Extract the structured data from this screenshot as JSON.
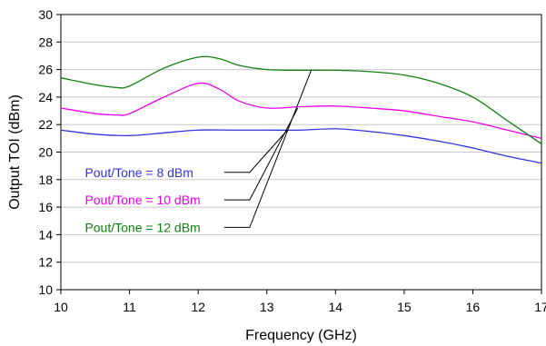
{
  "chart_data": {
    "type": "line",
    "title": "",
    "xlabel": "Frequency (GHz)",
    "ylabel": "Output TOI (dBm)",
    "xlim": [
      10,
      17
    ],
    "ylim": [
      10,
      30
    ],
    "xticks": [
      "10",
      "11",
      "12",
      "13",
      "14",
      "15",
      "16",
      "17"
    ],
    "yticks": [
      "10",
      "12",
      "14",
      "16",
      "18",
      "20",
      "22",
      "24",
      "26",
      "28",
      "30"
    ],
    "grid": "horizontal",
    "legend": "inline labels with leader lines, lower-left",
    "series": [
      {
        "name": "Pout/Tone = 8 dBm",
        "color": "#3333dd",
        "x": [
          10,
          10.5,
          11,
          11.5,
          12,
          12.5,
          13,
          13.5,
          14,
          14.5,
          15,
          15.5,
          16,
          16.5,
          17
        ],
        "y": [
          21.6,
          21.3,
          21.2,
          21.4,
          21.6,
          21.6,
          21.6,
          21.6,
          21.7,
          21.5,
          21.2,
          20.8,
          20.3,
          19.7,
          19.2
        ]
      },
      {
        "name": "Pout/Tone = 10 dBm",
        "color": "#ee00ee",
        "x": [
          10,
          10.5,
          10.8,
          11,
          11.5,
          12,
          12.3,
          12.6,
          13,
          13.5,
          14,
          14.5,
          15,
          15.5,
          16,
          16.5,
          17
        ],
        "y": [
          23.2,
          22.8,
          22.7,
          22.8,
          24.0,
          25.0,
          24.6,
          23.7,
          23.2,
          23.3,
          23.35,
          23.2,
          23.0,
          22.6,
          22.2,
          21.6,
          21.0
        ]
      },
      {
        "name": "Pout/Tone  = 12 dBm",
        "color": "#108010",
        "x": [
          10,
          10.5,
          10.8,
          11,
          11.5,
          12,
          12.3,
          12.6,
          13,
          13.5,
          14,
          14.5,
          15,
          15.5,
          16,
          16.5,
          17
        ],
        "y": [
          25.4,
          24.9,
          24.7,
          24.8,
          26.1,
          26.9,
          26.8,
          26.3,
          26.0,
          25.95,
          25.95,
          25.85,
          25.6,
          25.0,
          24.0,
          22.3,
          20.6
        ]
      }
    ],
    "annotations": [
      {
        "label": "Pout/Tone = 8 dBm",
        "series": 0,
        "anchor": [
          13.3,
          21.6
        ],
        "label_pos": [
          10.35,
          18.2
        ],
        "elbow_x": 12.75
      },
      {
        "label": "Pout/Tone = 10 dBm",
        "series": 1,
        "anchor": [
          13.45,
          23.2
        ],
        "label_pos": [
          10.35,
          16.2
        ],
        "elbow_x": 12.75
      },
      {
        "label": "Pout/Tone  = 12 dBm",
        "series": 2,
        "anchor": [
          13.65,
          26.0
        ],
        "label_pos": [
          10.35,
          14.2
        ],
        "elbow_x": 12.75
      }
    ]
  }
}
